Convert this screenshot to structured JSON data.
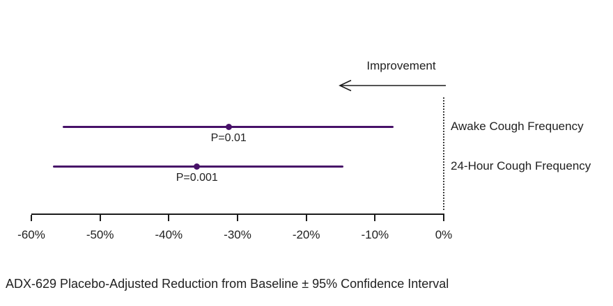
{
  "chart_data": {
    "type": "forest_ci",
    "title": "",
    "caption": "ADX-629 Placebo-Adjusted Reduction from Baseline ± 95% Confidence Interval",
    "improvement_label": "Improvement",
    "improvement_arrow_direction": "left",
    "xlim": [
      -60,
      0
    ],
    "x_tick_values": [
      -60,
      -50,
      -40,
      -30,
      -20,
      -10,
      0
    ],
    "x_tick_labels": [
      "-60%",
      "-50%",
      "-40%",
      "-30%",
      "-20%",
      "-10%",
      "0%"
    ],
    "reference_line_value": 0,
    "grid": "off",
    "series": [
      {
        "label": "Awake Cough Frequency",
        "estimate": -31.3,
        "ci_low": -55.4,
        "ci_high": -7.3,
        "p_label": "P=0.01"
      },
      {
        "label": "24-Hour Cough Frequency",
        "estimate": -35.9,
        "ci_low": -56.9,
        "ci_high": -14.6,
        "p_label": "P=0.001"
      }
    ],
    "colors": {
      "ci": "#471168",
      "axis": "#1a1a1a",
      "text": "#212121"
    }
  }
}
